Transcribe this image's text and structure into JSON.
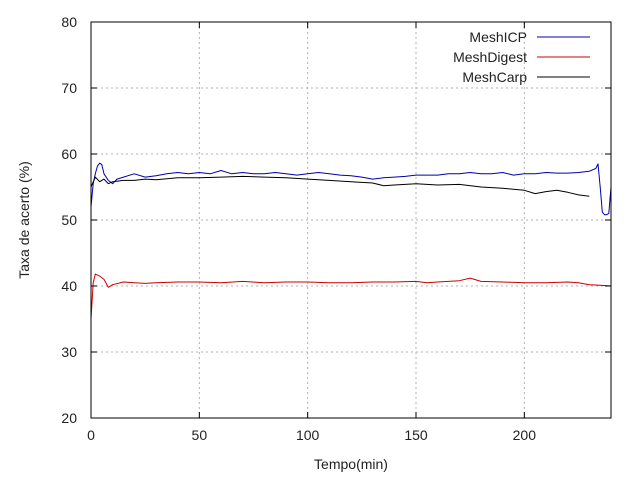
{
  "chart_data": {
    "type": "line",
    "title": "",
    "xlabel": "Tempo(min)",
    "ylabel": "Taxa de acerto (%)",
    "xlim": [
      0,
      240
    ],
    "ylim": [
      20,
      80
    ],
    "xticks": [
      0,
      50,
      100,
      150,
      200
    ],
    "yticks": [
      20,
      30,
      40,
      50,
      60,
      70,
      80
    ],
    "grid": true,
    "legend": "top-right",
    "series": [
      {
        "name": "MeshICP",
        "color": "#0000aa",
        "x": [
          0,
          1,
          2,
          3,
          4,
          5,
          6,
          8,
          10,
          12,
          15,
          20,
          25,
          30,
          35,
          40,
          45,
          50,
          55,
          60,
          65,
          70,
          75,
          80,
          85,
          90,
          95,
          100,
          105,
          110,
          115,
          120,
          125,
          130,
          135,
          140,
          145,
          150,
          155,
          160,
          165,
          170,
          175,
          180,
          185,
          190,
          195,
          200,
          205,
          210,
          215,
          220,
          225,
          230,
          233,
          234,
          235,
          236,
          237,
          238,
          239,
          240
        ],
        "y": [
          52,
          55.5,
          57,
          58.2,
          58.6,
          58.4,
          57,
          56,
          55.5,
          56.2,
          56.5,
          57,
          56.5,
          56.7,
          57,
          57.2,
          57,
          57.2,
          57,
          57.5,
          57,
          57.2,
          57,
          57,
          57.2,
          57,
          56.8,
          57,
          57.2,
          57,
          56.8,
          56.7,
          56.5,
          56.2,
          56.4,
          56.5,
          56.6,
          56.8,
          56.8,
          56.8,
          57,
          57,
          57.2,
          57,
          57,
          57.2,
          56.8,
          57,
          57,
          57.2,
          57.1,
          57.1,
          57.2,
          57.4,
          57.8,
          58.5,
          55,
          51.2,
          50.8,
          50.8,
          51,
          55
        ]
      },
      {
        "name": "MeshDigest",
        "color": "#cc0000",
        "x": [
          0,
          1,
          2,
          4,
          6,
          8,
          10,
          15,
          20,
          25,
          30,
          40,
          50,
          60,
          70,
          80,
          90,
          100,
          110,
          120,
          130,
          140,
          150,
          155,
          160,
          170,
          175,
          180,
          190,
          200,
          210,
          220,
          225,
          230,
          235,
          240
        ],
        "y": [
          35,
          40.5,
          41.8,
          41.5,
          41,
          39.8,
          40.2,
          40.6,
          40.5,
          40.4,
          40.5,
          40.6,
          40.6,
          40.5,
          40.7,
          40.5,
          40.6,
          40.6,
          40.5,
          40.5,
          40.6,
          40.6,
          40.7,
          40.5,
          40.6,
          40.8,
          41.2,
          40.7,
          40.6,
          40.5,
          40.5,
          40.6,
          40.5,
          40.2,
          40.1,
          40
        ]
      },
      {
        "name": "MeshCarp",
        "color": "#000000",
        "x": [
          0,
          2,
          4,
          6,
          8,
          10,
          15,
          20,
          25,
          30,
          40,
          50,
          60,
          70,
          80,
          90,
          100,
          110,
          120,
          130,
          135,
          140,
          150,
          160,
          170,
          180,
          190,
          200,
          205,
          210,
          215,
          220,
          225,
          230
        ],
        "y": [
          55,
          56.5,
          55.8,
          56.2,
          55.5,
          55.8,
          56,
          56,
          56.2,
          56.1,
          56.4,
          56.4,
          56.5,
          56.6,
          56.5,
          56.4,
          56.2,
          56,
          55.8,
          55.6,
          55.2,
          55.3,
          55.5,
          55.3,
          55.4,
          55,
          54.8,
          54.5,
          54,
          54.3,
          54.5,
          54.2,
          53.8,
          53.6
        ]
      }
    ]
  }
}
